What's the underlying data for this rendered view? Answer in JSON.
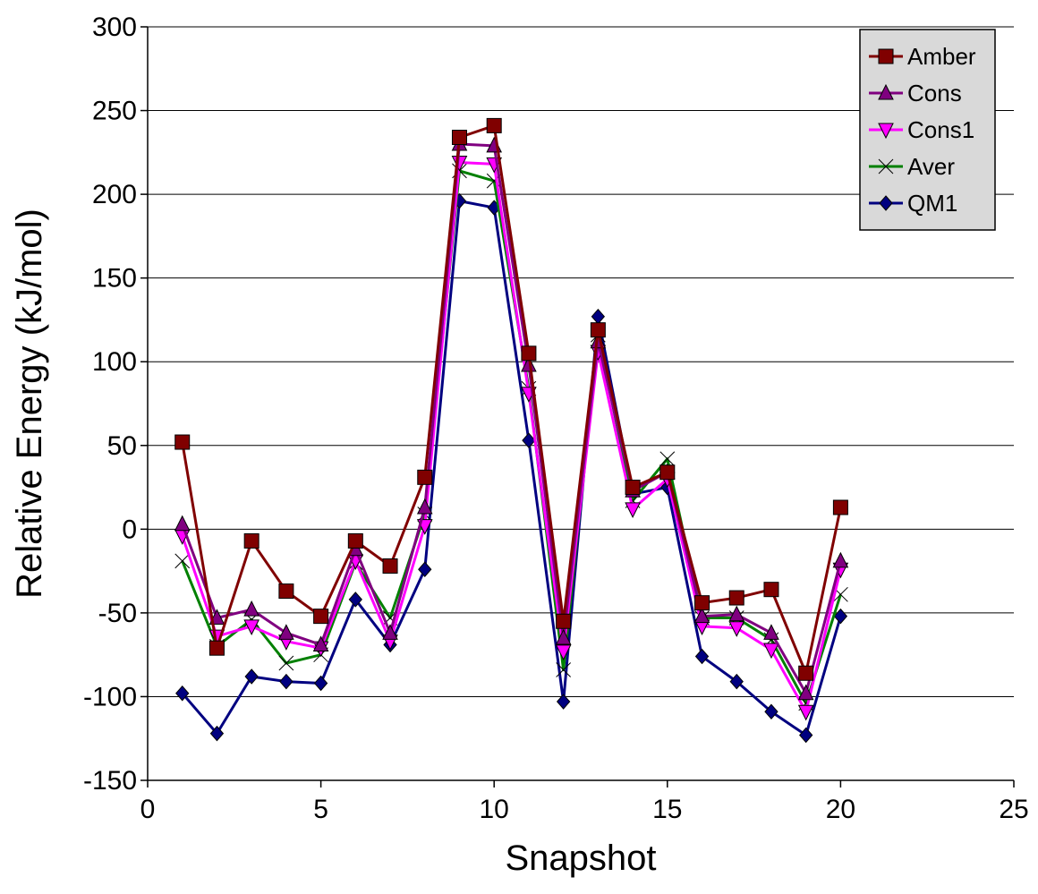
{
  "chart_data": {
    "type": "line",
    "title": "",
    "xlabel": "Snapshot",
    "ylabel": "Relative Energy (kJ/mol)",
    "xlim": [
      0,
      25
    ],
    "ylim": [
      -150,
      300
    ],
    "xticks": [
      0,
      5,
      10,
      15,
      20,
      25
    ],
    "yticks": [
      -150,
      -100,
      -50,
      0,
      50,
      100,
      150,
      200,
      250,
      300
    ],
    "grid": "horizontal",
    "legend_position": "top-right",
    "x": [
      1,
      2,
      3,
      4,
      5,
      6,
      7,
      8,
      9,
      10,
      11,
      12,
      13,
      14,
      15,
      16,
      17,
      18,
      19,
      20
    ],
    "series": [
      {
        "name": "Amber",
        "color": "#800000",
        "marker": "square",
        "values": [
          52,
          -71,
          -7,
          -37,
          -52,
          -7,
          -22,
          31,
          234,
          241,
          105,
          -55,
          119,
          25,
          34,
          -44,
          -41,
          -36,
          -86,
          13
        ]
      },
      {
        "name": "Cons",
        "color": "#800080",
        "marker": "triangle-up",
        "values": [
          3,
          -53,
          -48,
          -62,
          -69,
          -12,
          -62,
          13,
          230,
          229,
          98,
          -65,
          112,
          23,
          34,
          -52,
          -51,
          -62,
          -98,
          -19
        ]
      },
      {
        "name": "Cons1",
        "color": "#ff00ff",
        "marker": "triangle-down",
        "values": [
          -4,
          -64,
          -58,
          -67,
          -71,
          -19,
          -67,
          2,
          219,
          218,
          81,
          -73,
          106,
          12,
          30,
          -58,
          -59,
          -72,
          -109,
          -24
        ]
      },
      {
        "name": "Aver",
        "color": "#008000",
        "marker": "bowtie",
        "values": [
          -19,
          -70,
          -54,
          -80,
          -75,
          -20,
          -53,
          9,
          214,
          208,
          84,
          -84,
          116,
          17,
          42,
          -53,
          -53,
          -66,
          -104,
          -39
        ]
      },
      {
        "name": "QM1",
        "color": "#000080",
        "marker": "diamond",
        "values": [
          -98,
          -122,
          -88,
          -91,
          -92,
          -42,
          -69,
          -24,
          196,
          192,
          53,
          -103,
          127,
          21,
          25,
          -76,
          -91,
          -109,
          -123,
          -52
        ]
      }
    ]
  }
}
